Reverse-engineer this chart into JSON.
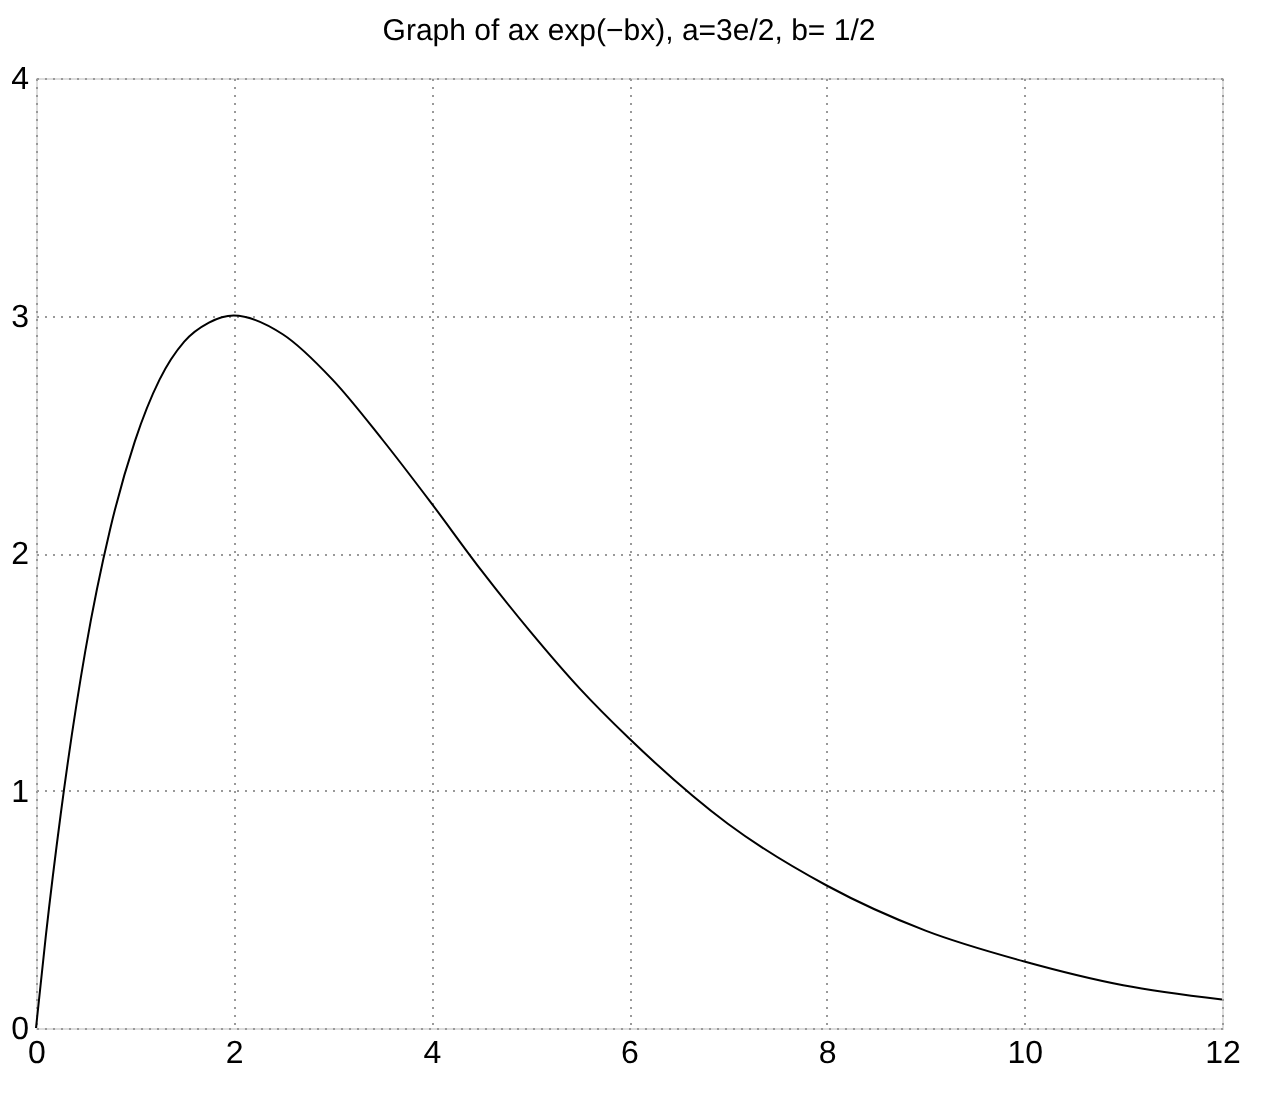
{
  "chart_data": {
    "type": "line",
    "title": "Graph of ax exp(−bx), a=3e/2, b= 1/2",
    "x": [
      0,
      0.1,
      0.25,
      0.5,
      0.75,
      1,
      1.25,
      1.5,
      1.75,
      2,
      2.5,
      3,
      3.5,
      4,
      4.5,
      5,
      5.5,
      6,
      7,
      8,
      9,
      10,
      11,
      12
    ],
    "series": [
      {
        "color": "#000000",
        "values": [
          0,
          0.39,
          0.9,
          1.59,
          2.1,
          2.47,
          2.73,
          2.89,
          2.97,
          3.0,
          2.92,
          2.73,
          2.48,
          2.21,
          1.93,
          1.67,
          1.43,
          1.22,
          0.86,
          0.6,
          0.41,
          0.28,
          0.18,
          0.12
        ]
      }
    ],
    "xlim": [
      0,
      12
    ],
    "xticks": [
      0,
      2,
      4,
      6,
      8,
      10,
      12
    ],
    "ylim": [
      0,
      4
    ],
    "yticks": [
      0,
      1,
      2,
      3,
      4
    ],
    "grid": true,
    "marker": "none",
    "line_style": "solid"
  }
}
